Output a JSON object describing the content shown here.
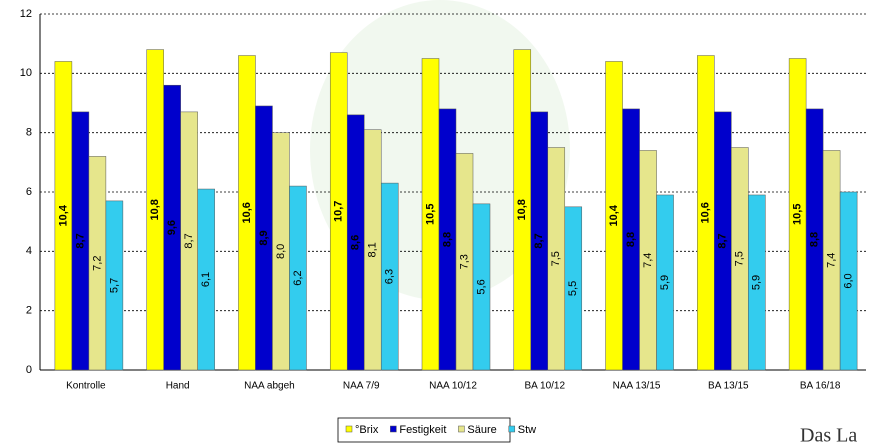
{
  "chart_data": {
    "type": "bar",
    "categories": [
      "Kontrolle",
      "Hand",
      "NAA abgeh",
      "NAA 7/9",
      "NAA 10/12",
      "BA 10/12",
      "NAA 13/15",
      "BA 13/15",
      "BA 16/18"
    ],
    "series": [
      {
        "name": "°Brix",
        "color": "#ffff00",
        "values": [
          10.4,
          10.8,
          10.6,
          10.7,
          10.5,
          10.8,
          10.4,
          10.6,
          10.5
        ],
        "value_labels": [
          "10,4",
          "10,8",
          "10,6",
          "10,7",
          "10,5",
          "10,8",
          "10,4",
          "10,6",
          "10,5"
        ]
      },
      {
        "name": "Festigkeit",
        "color": "#0000cc",
        "values": [
          8.7,
          9.6,
          8.9,
          8.6,
          8.8,
          8.7,
          8.8,
          8.7,
          8.8
        ],
        "value_labels": [
          "8,7",
          "9,6",
          "8,9",
          "8,6",
          "8,8",
          "8,7",
          "8,8",
          "8,7",
          "8,8"
        ]
      },
      {
        "name": "Säure",
        "color": "#e6e68c",
        "values": [
          7.2,
          8.7,
          8.0,
          8.1,
          7.3,
          7.5,
          7.4,
          7.5,
          7.4
        ],
        "value_labels": [
          "7,2",
          "8,7",
          "8,0",
          "8,1",
          "7,3",
          "7,5",
          "7,4",
          "7,5",
          "7,4"
        ]
      },
      {
        "name": "Stw",
        "color": "#33ccee",
        "values": [
          5.7,
          6.1,
          6.2,
          6.3,
          5.6,
          5.5,
          5.9,
          5.9,
          6.0
        ],
        "value_labels": [
          "5,7",
          "6,1",
          "6,2",
          "6,3",
          "5,6",
          "5,5",
          "5,9",
          "5,9",
          "6,0"
        ]
      }
    ],
    "ylim": [
      0,
      12
    ],
    "yticks": [
      0,
      2,
      4,
      6,
      8,
      10,
      12
    ],
    "grid": true,
    "legend": "bottom",
    "logo_text": "Das La"
  }
}
